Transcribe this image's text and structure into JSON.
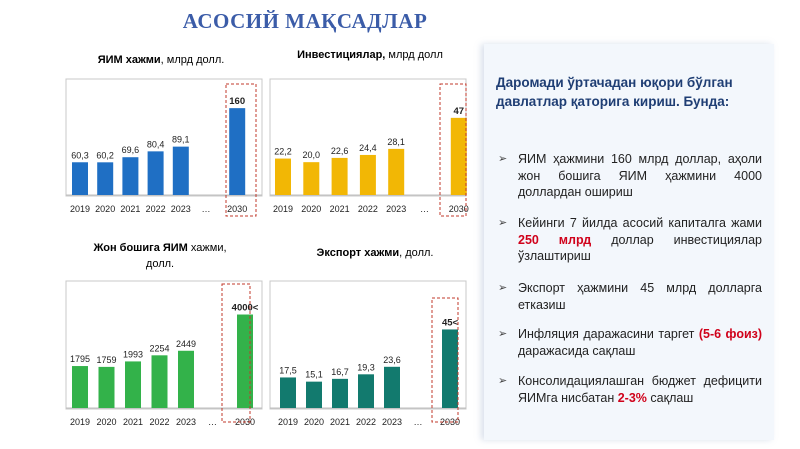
{
  "page_title": "АСОСИЙ МАҚСАДЛАР",
  "colors": {
    "title": "#3b5ca8",
    "highlight": "#d0021b",
    "heading": "#1f3e74"
  },
  "chart_data": [
    {
      "type": "bar",
      "title_bold": "ЯИМ хажми",
      "title_rest": ", млрд долл.",
      "categories": [
        "2019",
        "2020",
        "2021",
        "2022",
        "2023",
        "…",
        "2030"
      ],
      "values": [
        60.3,
        60.2,
        69.6,
        80.4,
        89.1,
        null,
        160
      ],
      "labels": [
        "60,3",
        "60,2",
        "69,6",
        "80,4",
        "89,1",
        "",
        "160"
      ],
      "ylim": [
        0,
        175
      ],
      "color": "#1f6fc4",
      "target_color": "#1f6fc4"
    },
    {
      "type": "bar",
      "title_bold": "Инвестициялар,",
      "title_rest": " млрд долл",
      "categories": [
        "2019",
        "2020",
        "2021",
        "2022",
        "2023",
        "…",
        "2030"
      ],
      "values": [
        22.2,
        20.0,
        22.6,
        24.4,
        28.1,
        null,
        47
      ],
      "labels": [
        "22,2",
        "20,0",
        "22,6",
        "24,4",
        "28,1",
        "",
        "47"
      ],
      "ylim": [
        0,
        53
      ],
      "color": "#f2b705",
      "target_color": "#f2b705"
    },
    {
      "type": "bar",
      "title_bold": "Жон бошига ЯИМ",
      "title_rest": " хажми, долл.",
      "categories": [
        "2019",
        "2020",
        "2021",
        "2022",
        "2023",
        "…",
        "2030"
      ],
      "values": [
        1795,
        1759,
        1993,
        2254,
        2449,
        null,
        4000
      ],
      "labels": [
        "1795",
        "1759",
        "1993",
        "2254",
        "2449",
        "",
        "4000<"
      ],
      "ylim": [
        0,
        4450
      ],
      "color": "#33b24a",
      "target_color": "#33b24a"
    },
    {
      "type": "bar",
      "title_bold": "Экспорт хажми",
      "title_rest": ", долл.",
      "categories": [
        "2019",
        "2020",
        "2021",
        "2022",
        "2023",
        "…",
        "2030"
      ],
      "values": [
        17.5,
        15.1,
        16.7,
        19.3,
        23.6,
        null,
        45
      ],
      "labels": [
        "17,5",
        "15,1",
        "16,7",
        "19,3",
        "23,6",
        "",
        "45<"
      ],
      "ylim": [
        0,
        55
      ],
      "color": "#127a6e",
      "target_color": "#127a6e"
    }
  ],
  "panel": {
    "heading": "Даромади ўртачадан юқори бўлган давлатлар қаторига кириш. Бунда:",
    "bullet_glyph": "➢",
    "goals": [
      {
        "parts": [
          "ЯИМ ҳажмини 160 млрд доллар, аҳоли жон бошига ЯИМ ҳажмини 4000 доллардан ошириш"
        ]
      },
      {
        "parts": [
          "Кейинги 7 йилда асосий капиталга жами ",
          "250 млрд",
          " доллар инвестициялар ўзлаштириш"
        ]
      },
      {
        "parts": [
          "Экспорт ҳажмини 45 млрд долларга етказиш"
        ]
      },
      {
        "parts": [
          "Инфляция даражасини таргет ",
          "(5-6 фоиз)",
          " даражасида сақлаш"
        ]
      },
      {
        "parts": [
          "Консолидациялашган бюджет дефицити ЯИМга нисбатан ",
          "2-3%",
          " сақлаш"
        ]
      }
    ]
  }
}
